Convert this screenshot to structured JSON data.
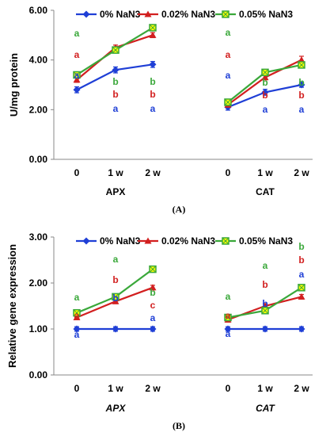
{
  "colors": {
    "s0": "#1f3fd6",
    "s1": "#d21f1f",
    "s2": "#3aa83a"
  },
  "chart_data": [
    {
      "panel_label": "(A)",
      "type": "line",
      "ylabel": "U/mg protein",
      "ylim": [
        0,
        6
      ],
      "yticks": [
        "0.00",
        "2.00",
        "4.00",
        "6.00"
      ],
      "legend": "top",
      "group_italic": false,
      "groups": [
        {
          "name": "APX",
          "x": [
            "0",
            "1 w",
            "2 w"
          ]
        },
        {
          "name": "CAT",
          "x": [
            "0",
            "1 w",
            "2 w"
          ]
        }
      ],
      "series": [
        {
          "name": "0% NaN3",
          "color": "#1f3fd6",
          "marker": "diamond",
          "values": [
            [
              2.8,
              3.6,
              3.82
            ],
            [
              2.1,
              2.7,
              3.0
            ]
          ],
          "err": [
            [
              0.12,
              0.12,
              0.12
            ],
            [
              0.12,
              0.12,
              0.1
            ]
          ]
        },
        {
          "name": "0.02% NaN3",
          "color": "#d21f1f",
          "marker": "triangle",
          "values": [
            [
              3.2,
              4.5,
              5.0
            ],
            [
              2.2,
              3.3,
              4.0
            ]
          ],
          "err": [
            [
              0.1,
              0.1,
              0.1
            ],
            [
              0.1,
              0.1,
              0.15
            ]
          ]
        },
        {
          "name": "0.05% NaN3",
          "color": "#3aa83a",
          "marker": "square",
          "values": [
            [
              3.4,
              4.4,
              5.3
            ],
            [
              2.3,
              3.5,
              3.8
            ]
          ],
          "err": [
            [
              0.1,
              0.12,
              0.1
            ],
            [
              0.1,
              0.1,
              0.1
            ]
          ]
        }
      ],
      "letters": [
        [
          [
            "a",
            "a",
            "a"
          ],
          [
            "b",
            "b",
            "a"
          ],
          [
            "b",
            "b",
            "a"
          ]
        ],
        [
          [
            "a",
            "a",
            "a"
          ],
          [
            "b",
            "b",
            "a"
          ],
          [
            "b",
            "b",
            "a"
          ]
        ]
      ]
    },
    {
      "panel_label": "(B)",
      "type": "line",
      "ylabel": "Relative gene expression",
      "ylim": [
        0,
        3
      ],
      "yticks": [
        "0.00",
        "1.00",
        "2.00",
        "3.00"
      ],
      "legend": "top",
      "group_italic": true,
      "groups": [
        {
          "name": "APX",
          "x": [
            "0",
            "1 w",
            "2 w"
          ]
        },
        {
          "name": "CAT",
          "x": [
            "0",
            "1 w",
            "2 w"
          ]
        }
      ],
      "series": [
        {
          "name": "0% NaN3",
          "color": "#1f3fd6",
          "marker": "diamond",
          "values": [
            [
              1.0,
              1.0,
              1.0
            ],
            [
              1.0,
              1.0,
              1.0
            ]
          ],
          "err": [
            [
              0.05,
              0.05,
              0.05
            ],
            [
              0.05,
              0.05,
              0.05
            ]
          ]
        },
        {
          "name": "0.02% NaN3",
          "color": "#d21f1f",
          "marker": "triangle",
          "values": [
            [
              1.25,
              1.6,
              1.9
            ],
            [
              1.2,
              1.5,
              1.7
            ]
          ],
          "err": [
            [
              0.05,
              0.05,
              0.05
            ],
            [
              0.05,
              0.05,
              0.05
            ]
          ]
        },
        {
          "name": "0.05% NaN3",
          "color": "#3aa83a",
          "marker": "square",
          "values": [
            [
              1.35,
              1.7,
              2.3
            ],
            [
              1.25,
              1.4,
              1.9
            ]
          ],
          "err": [
            [
              0.05,
              0.05,
              0.04
            ],
            [
              0.05,
              0.05,
              0.06
            ]
          ]
        }
      ],
      "letters": [
        [
          [
            "a",
            "a",
            "a"
          ],
          [
            "a",
            "b",
            "b"
          ],
          [
            "b",
            "c",
            "a"
          ]
        ],
        [
          [
            "a",
            "a",
            "a"
          ],
          [
            "a",
            "b",
            "b"
          ],
          [
            "b",
            "b",
            "a"
          ]
        ]
      ]
    }
  ]
}
